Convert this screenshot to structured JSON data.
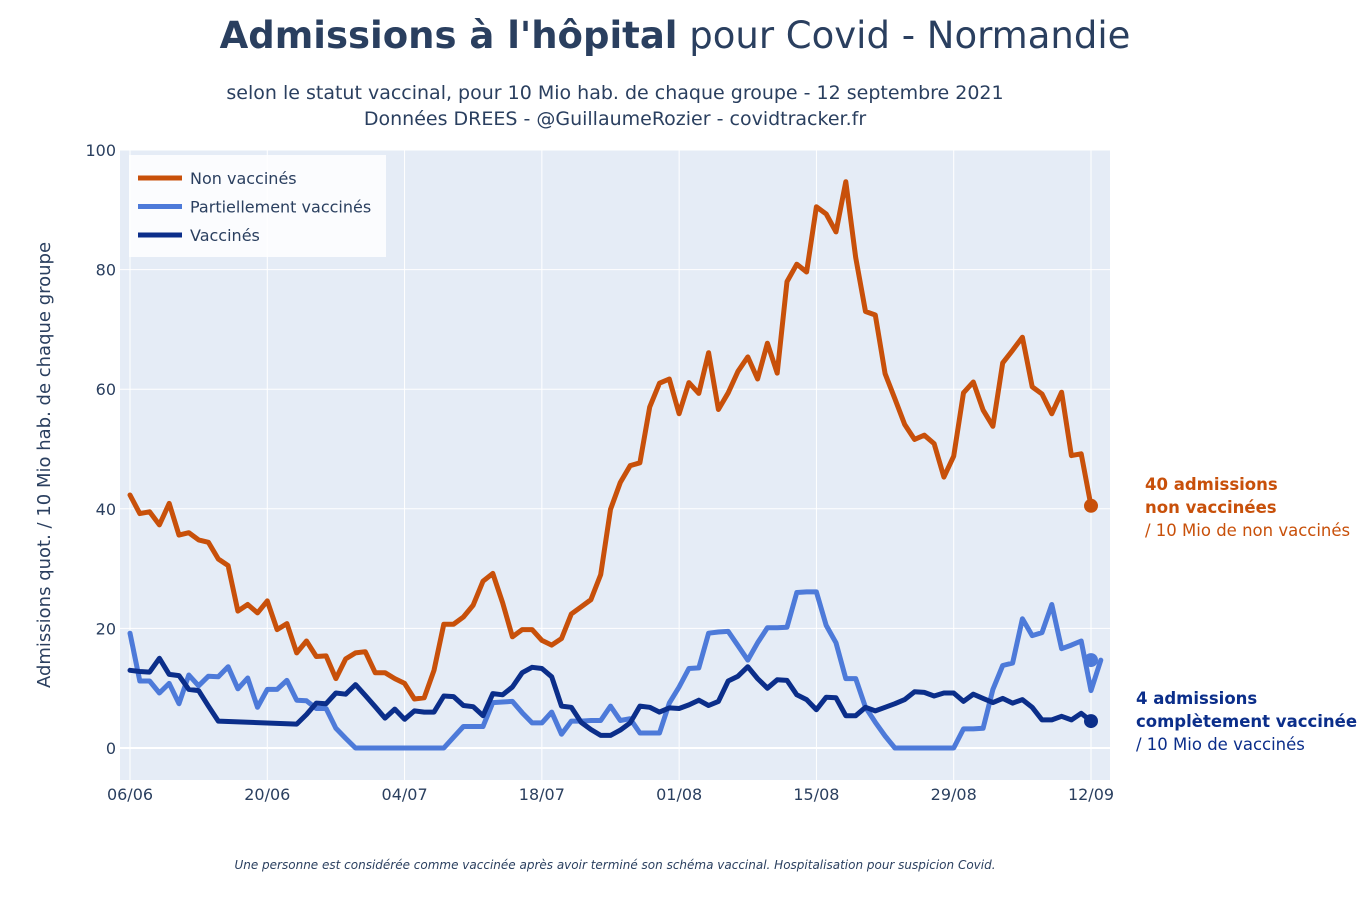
{
  "header": {
    "title_bold": "Admissions à l'hôpital",
    "title_rest": " pour Covid - Normandie",
    "subtitle_line1": "selon le statut vaccinal, pour 10 Mio hab. de chaque groupe - 12 septembre 2021",
    "subtitle_line2": "Données DREES - @GuillaumeRozier - covidtracker.fr"
  },
  "annotations": {
    "non_vaccines": {
      "line1": "40 admissions",
      "line2": "non vaccinées",
      "line3": "/ 10 Mio de non vaccinés"
    },
    "vaccines": {
      "line1": "4 admissions",
      "line2": "complètement vaccinée",
      "line3": "/ 10 Mio de vaccinés"
    }
  },
  "footnote": "Une personne est considérée comme vaccinée après avoir terminé son schéma vaccinal. Hospitalisation pour suspicion Covid.",
  "colors": {
    "background": "#e5ecf6",
    "non_vaccines": "#c8500a",
    "partiellement": "#4d7ad9",
    "vaccines": "#0b2e8a"
  },
  "chart_data": {
    "type": "line",
    "title": "Admissions à l'hôpital pour Covid - Normandie",
    "ylabel": "Admissions quot. / 10 Mio hab. de chaque groupe",
    "xlabel": "",
    "ylim": [
      -5,
      100
    ],
    "y_ticks": [
      0,
      20,
      40,
      60,
      80,
      100
    ],
    "x_ticks": [
      "06/06",
      "20/06",
      "04/07",
      "18/07",
      "01/08",
      "15/08",
      "29/08",
      "12/09"
    ],
    "x_start": "2021-06-06",
    "x_end": "2021-09-12",
    "grid": true,
    "legend_position": "top-left",
    "series": [
      {
        "name": "Non vaccinés",
        "color": "#c8500a",
        "values": [
          42.3,
          39.2,
          39.5,
          37.3,
          40.9,
          35.6,
          36.0,
          34.8,
          34.4,
          31.6,
          30.5,
          22.9,
          24.0,
          22.6,
          24.6,
          19.8,
          20.8,
          15.9,
          17.9,
          15.3,
          15.4,
          11.6,
          14.9,
          15.9,
          16.1,
          12.6,
          12.6,
          11.6,
          10.8,
          8.2,
          8.4,
          13.0,
          20.7,
          20.7,
          21.9,
          23.9,
          27.9,
          29.2,
          24.3,
          18.6,
          19.8,
          19.8,
          18.0,
          17.2,
          18.3,
          22.4,
          23.6,
          24.8,
          29.0,
          39.9,
          44.4,
          47.2,
          47.7,
          57.0,
          61.0,
          61.7,
          55.9,
          61.1,
          59.3,
          66.1,
          56.6,
          59.4,
          63.0,
          65.4,
          61.7,
          67.7,
          62.7,
          78.0,
          80.9,
          79.6,
          90.5,
          89.3,
          86.3,
          94.7,
          82.0,
          73.0,
          72.4,
          62.6,
          58.4,
          54.1,
          51.6,
          52.3,
          50.9,
          45.3,
          48.8,
          59.4,
          61.2,
          56.5,
          53.8,
          64.4,
          66.5,
          68.7,
          60.4,
          59.2,
          55.9,
          59.5,
          48.9,
          49.2,
          40.5
        ]
      },
      {
        "name": "Partiellement vaccinés",
        "color": "#4d7ad9",
        "values": [
          19.2,
          11.2,
          11.2,
          9.2,
          10.8,
          7.4,
          12.2,
          10.4,
          12.0,
          11.9,
          13.6,
          9.9,
          11.7,
          6.8,
          9.8,
          9.8,
          11.3,
          8.0,
          7.9,
          6.6,
          6.6,
          3.3,
          1.6,
          0.0,
          0.0,
          0.0,
          0.0,
          0.0,
          0.0,
          0.0,
          0.0,
          0.0,
          0.0,
          1.8,
          3.6,
          3.6,
          3.6,
          7.6,
          7.7,
          7.8,
          5.9,
          4.2,
          4.2,
          6.0,
          2.3,
          4.5,
          4.5,
          4.6,
          4.6,
          7.0,
          4.6,
          4.9,
          2.5,
          2.5,
          2.5,
          7.5,
          10.2,
          13.3,
          13.4,
          19.2,
          19.4,
          19.5,
          17.1,
          14.7,
          17.6,
          20.1,
          20.1,
          20.2,
          26.0,
          26.1,
          26.1,
          20.5,
          17.6,
          11.6,
          11.6,
          6.8,
          4.3,
          2.0,
          0.0,
          0.0,
          0.0,
          0.0,
          0.0,
          0.0,
          0.0,
          3.2,
          3.2,
          3.3,
          9.8,
          13.8,
          14.2,
          21.6,
          18.8,
          19.3,
          24.0,
          16.6,
          17.2,
          17.9,
          9.6,
          14.7
        ]
      },
      {
        "name": "Vaccinés",
        "color": "#0b2e8a",
        "values": [
          13.0,
          12.8,
          12.7,
          15.0,
          12.3,
          12.1,
          9.8,
          9.6,
          7.0,
          4.5,
          null,
          null,
          null,
          null,
          null,
          null,
          null,
          4.0,
          5.6,
          7.5,
          7.4,
          9.2,
          9.0,
          10.6,
          8.8,
          6.9,
          5.0,
          6.5,
          4.8,
          6.2,
          6.0,
          6.0,
          8.7,
          8.6,
          7.1,
          6.9,
          5.4,
          9.1,
          8.9,
          10.2,
          12.6,
          13.5,
          13.3,
          11.9,
          7.0,
          6.8,
          4.3,
          3.1,
          2.1,
          2.1,
          3.0,
          4.2,
          7.0,
          6.8,
          6.0,
          6.7,
          6.6,
          7.2,
          8.0,
          7.1,
          7.8,
          11.2,
          12.0,
          13.6,
          11.6,
          10.0,
          11.4,
          11.3,
          8.9,
          8.1,
          6.4,
          8.5,
          8.4,
          5.4,
          5.4,
          6.8,
          6.2,
          6.8,
          7.4,
          8.1,
          9.4,
          9.3,
          8.7,
          9.2,
          9.2,
          7.8,
          9.0,
          8.3,
          7.6,
          8.3,
          7.5,
          8.1,
          6.8,
          4.7,
          4.7,
          5.3,
          4.7,
          5.8,
          4.5
        ]
      }
    ]
  }
}
